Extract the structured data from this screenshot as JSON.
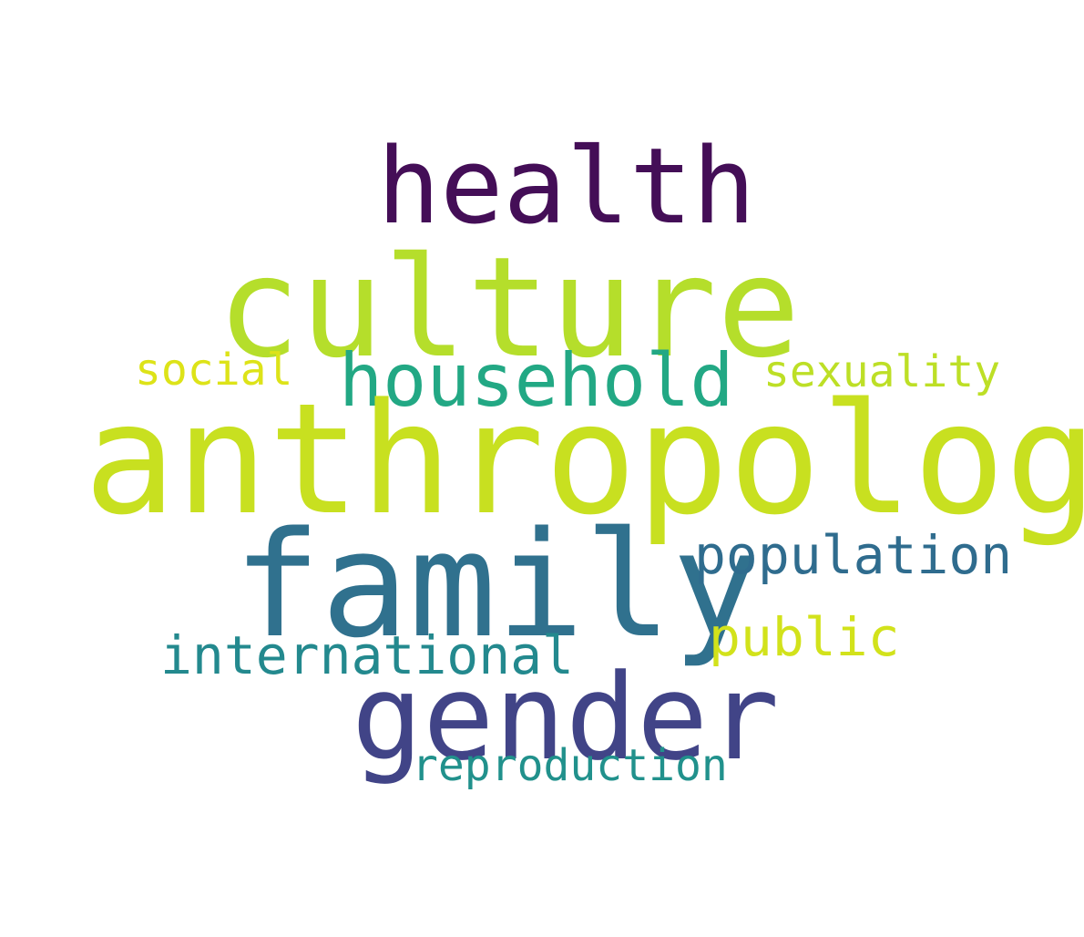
{
  "words": [
    {
      "key": "health",
      "text": "health",
      "color": "#440e57"
    },
    {
      "key": "culture",
      "text": "culture",
      "color": "#b5de2b"
    },
    {
      "key": "social",
      "text": "social",
      "color": "#dde318"
    },
    {
      "key": "household",
      "text": "household",
      "color": "#22a884"
    },
    {
      "key": "sexuality",
      "text": "sexuality",
      "color": "#bddf26"
    },
    {
      "key": "anthropology",
      "text": "anthropology",
      "color": "#c8e020"
    },
    {
      "key": "family",
      "text": "family",
      "color": "#30718e"
    },
    {
      "key": "population",
      "text": "population",
      "color": "#2f6c8e"
    },
    {
      "key": "public",
      "text": "public",
      "color": "#d2e21b"
    },
    {
      "key": "international",
      "text": "international",
      "color": "#23898e"
    },
    {
      "key": "gender",
      "text": "gender",
      "color": "#414487"
    },
    {
      "key": "reproduction",
      "text": "reproduction",
      "color": "#21918c"
    }
  ]
}
